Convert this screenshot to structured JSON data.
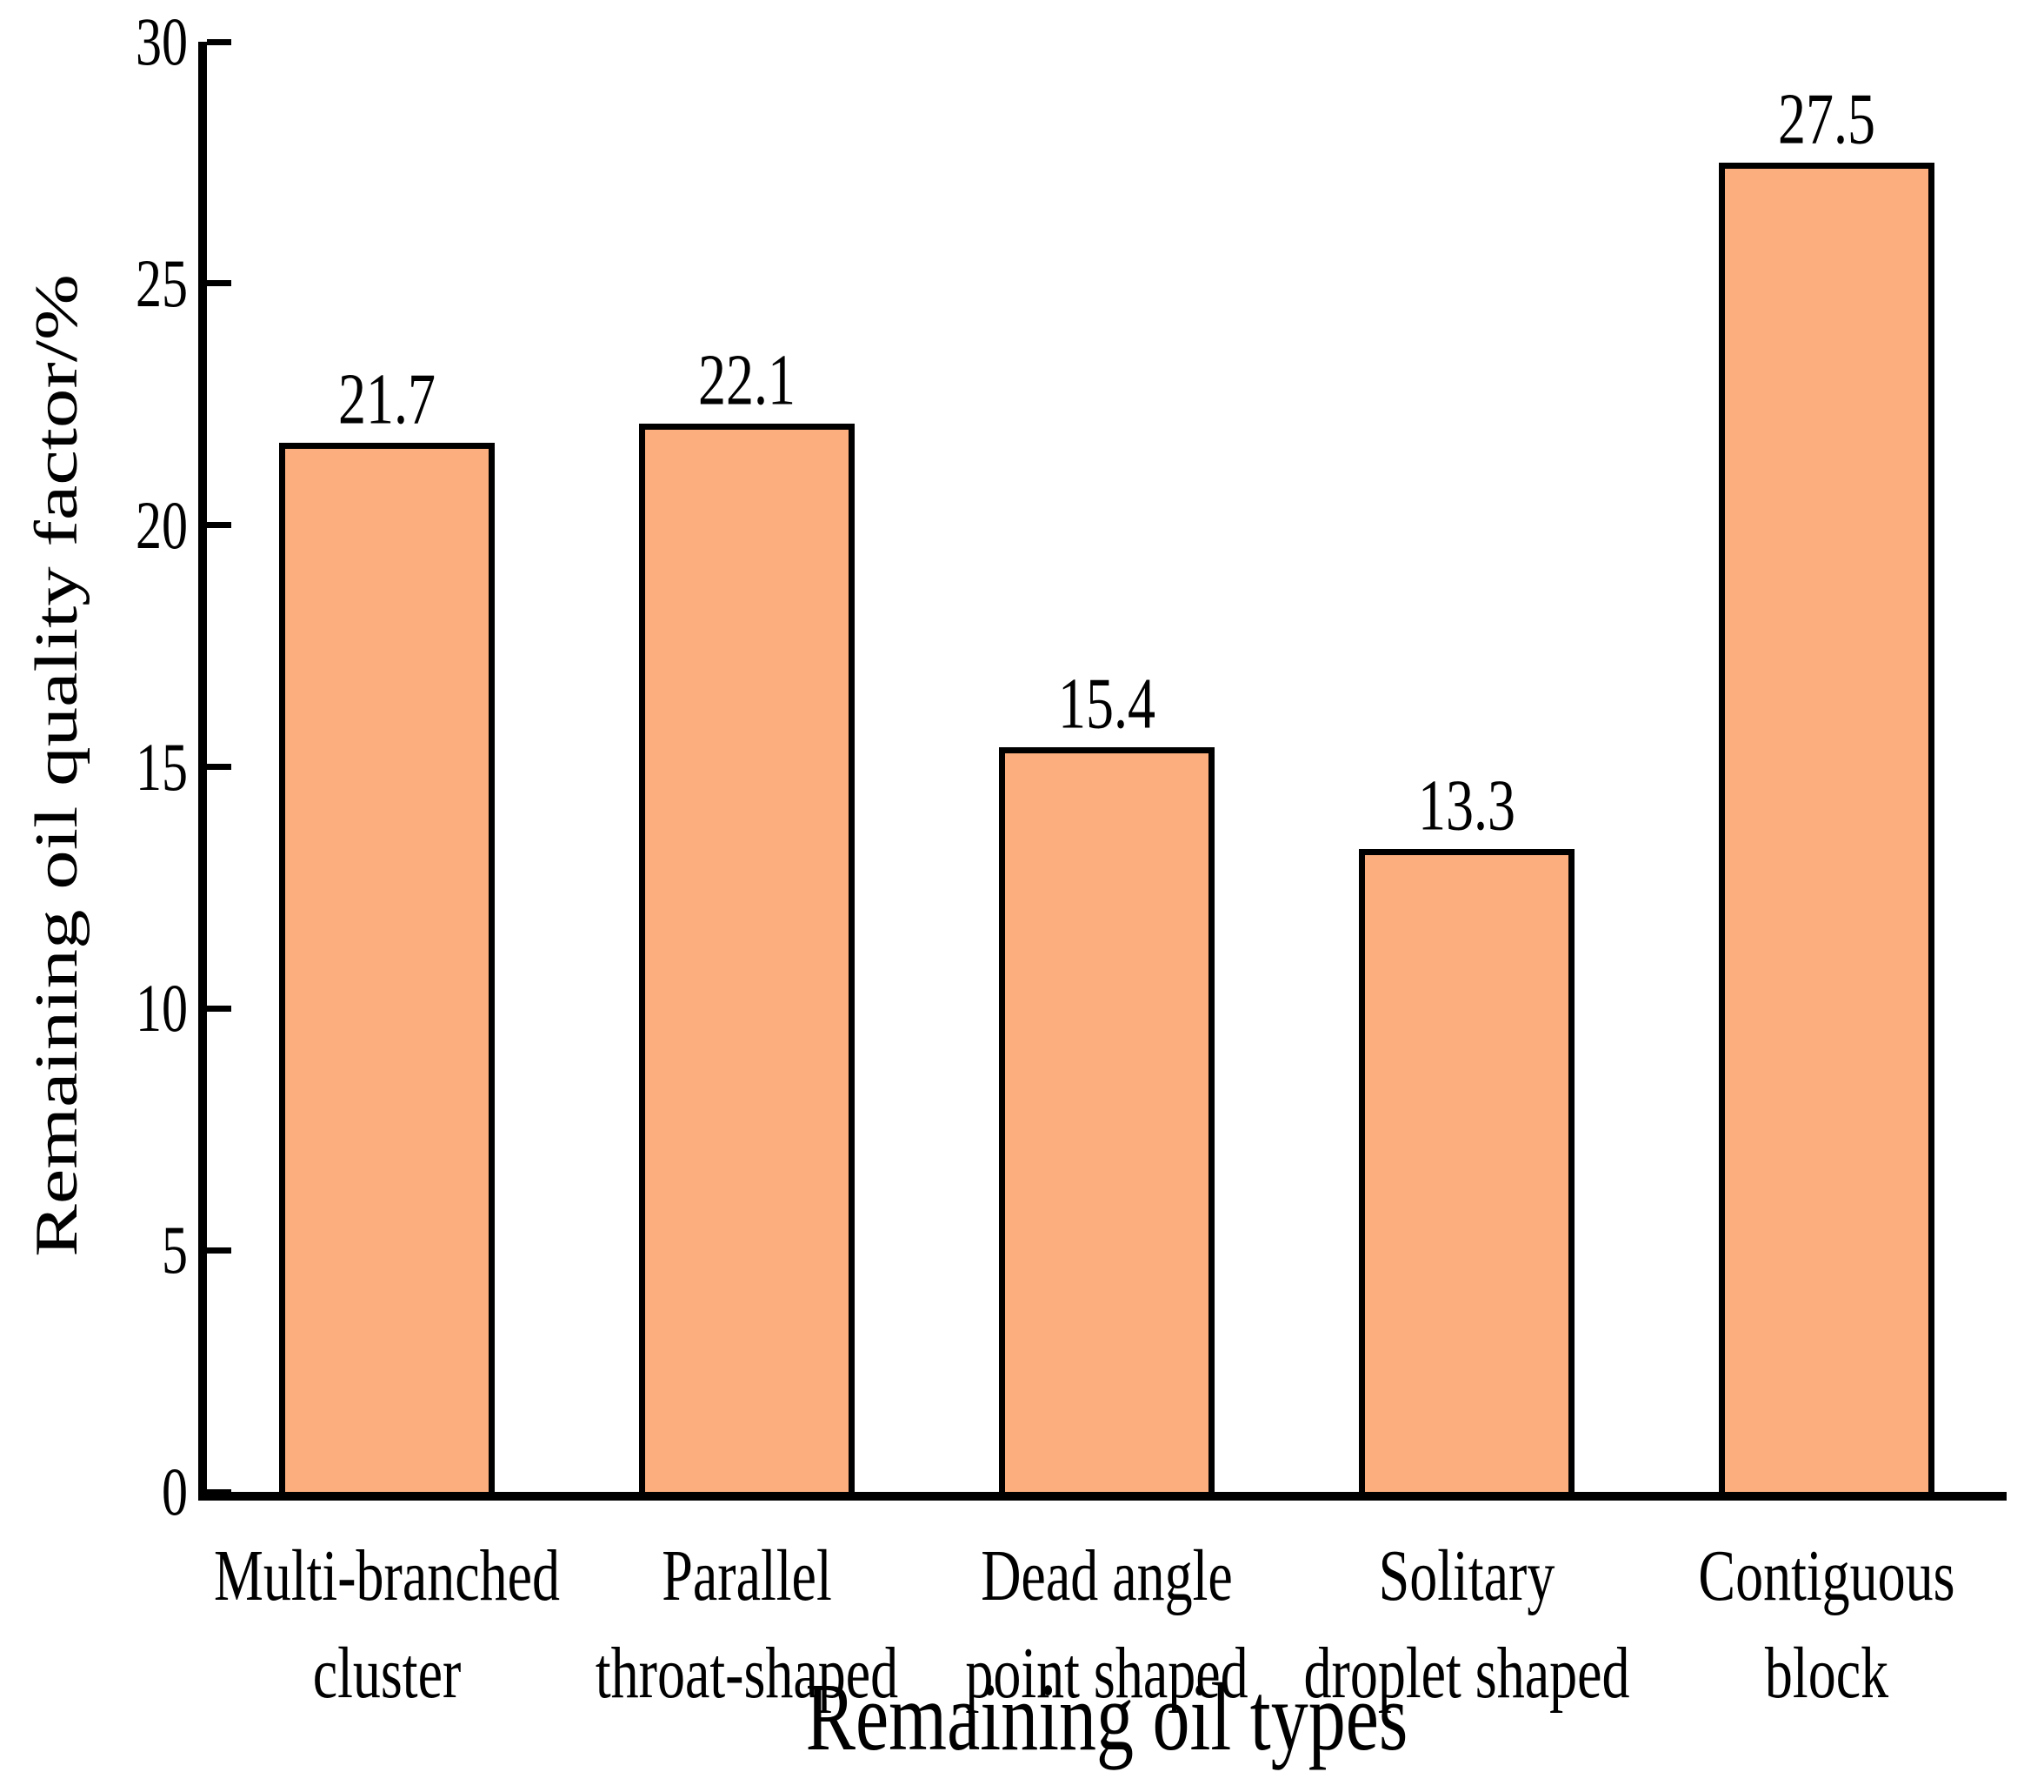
{
  "chart_data": {
    "type": "bar",
    "title": "",
    "categories": [
      "Multi-branched\ncluster",
      "Parallel\nthroat-shaped",
      "Dead angle\npoint shaped",
      "Solitary\ndroplet shaped",
      "Contiguous\nblock"
    ],
    "values": [
      21.7,
      22.1,
      15.4,
      13.3,
      27.5
    ],
    "value_labels": [
      "21.7",
      "22.1",
      "15.4",
      "13.3",
      "27.5"
    ],
    "xlabel": "Remaining oil types",
    "ylabel": "Remaining oil quality factor/%",
    "ylim": [
      0,
      30
    ],
    "yticks": [
      0,
      5,
      10,
      15,
      20,
      25,
      30
    ],
    "grid": false,
    "legend": "none",
    "bar_color": "#FDAE7E",
    "bar_border_color": "#000000",
    "axis_color": "#000000",
    "text_color": "#000000",
    "background_color": "#FFFFFF"
  }
}
